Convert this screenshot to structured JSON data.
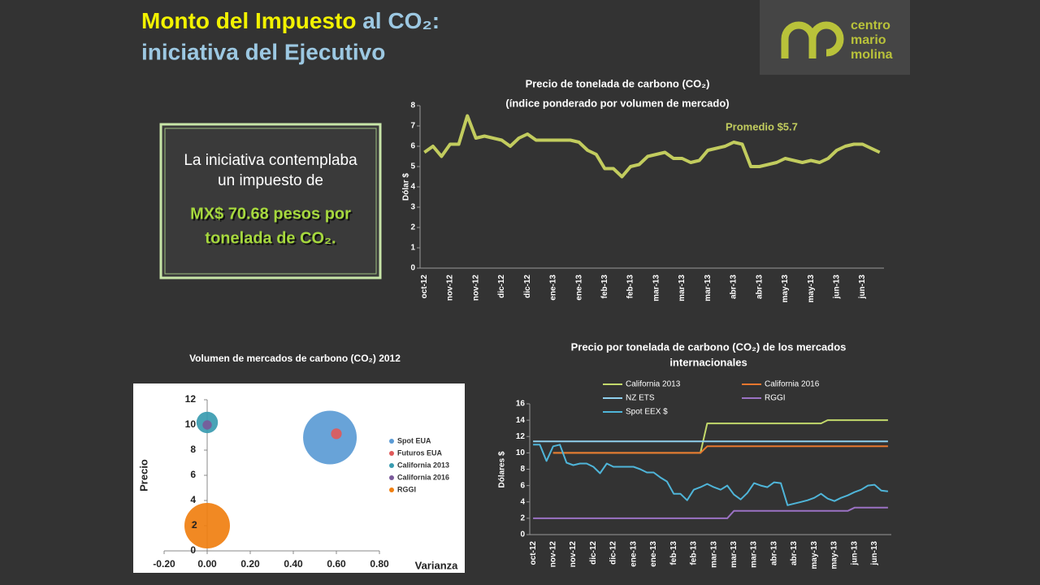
{
  "slide": {
    "title": [
      "Monto del Impuesto",
      "al CO₂:",
      "iniciativa del Ejecutivo"
    ],
    "box": {
      "lines": [
        "La iniciativa contemplaba",
        "un impuesto de"
      ],
      "highlight": [
        "MX$ 70.68 pesos por",
        "tonelada de CO₂."
      ]
    },
    "logo": [
      "centro",
      "mario",
      "molina"
    ]
  },
  "chart_data": [
    {
      "type": "line",
      "title": [
        "Precio de tonelada de carbono (CO₂)",
        "(índice ponderado por volumen de mercado)"
      ],
      "ylabel": "Dólar $",
      "annotation": "Promedio $5.7",
      "color": "#c2cc5e",
      "categories": [
        "oct-12",
        null,
        null,
        "nov-12",
        null,
        null,
        "nov-12",
        null,
        null,
        "dic-12",
        null,
        null,
        "dic-12",
        null,
        null,
        "ene-13",
        null,
        null,
        "ene-13",
        null,
        null,
        "feb-13",
        null,
        null,
        "feb-13",
        null,
        null,
        "mar-13",
        null,
        null,
        "mar-13",
        null,
        null,
        "mar-13",
        null,
        null,
        "abr-13",
        null,
        null,
        "abr-13",
        null,
        null,
        "may-13",
        null,
        null,
        "may-13",
        null,
        null,
        "jun-13",
        null,
        null,
        "jun-13",
        null,
        null
      ],
      "values": [
        5.7,
        6.0,
        5.5,
        6.1,
        6.1,
        7.5,
        6.4,
        6.5,
        6.4,
        6.3,
        6.0,
        6.4,
        6.6,
        6.3,
        6.3,
        6.3,
        6.3,
        6.3,
        6.2,
        5.8,
        5.6,
        4.9,
        4.9,
        4.5,
        5.0,
        5.1,
        5.5,
        5.6,
        5.7,
        5.4,
        5.4,
        5.2,
        5.3,
        5.8,
        5.9,
        6.0,
        6.2,
        6.1,
        5.0,
        5.0,
        5.1,
        5.2,
        5.4,
        5.3,
        5.2,
        5.3,
        5.2,
        5.4,
        5.8,
        6.0,
        6.1,
        6.1,
        5.9,
        5.7
      ],
      "ylim": [
        0,
        8
      ],
      "yticks": [
        0,
        1,
        2,
        3,
        4,
        5,
        6,
        7,
        8
      ]
    },
    {
      "type": "scatter",
      "title": "Volumen de mercados de carbono (CO₂) 2012",
      "xlabel": "Varianza",
      "ylabel": "Precio",
      "xlim": [
        -0.2,
        0.8
      ],
      "xticks": [
        {
          "value": -0.2,
          "label": "-0.20"
        },
        {
          "value": 0,
          "label": "0.00"
        },
        {
          "value": 0.2,
          "label": "0.20"
        },
        {
          "value": 0.4,
          "label": "0.40"
        },
        {
          "value": 0.6,
          "label": "0.60"
        },
        {
          "value": 0.8,
          "label": "0.80"
        }
      ],
      "ylim": [
        0,
        12
      ],
      "yticks": [
        0,
        2,
        4,
        6,
        8,
        10,
        12
      ],
      "series": [
        {
          "name": "Spot EUA",
          "color": "#5b9bd5",
          "x": [
            0.57
          ],
          "y": [
            9
          ],
          "size": [
            100
          ]
        },
        {
          "name": "Futuros EUA",
          "color": "#e05a5a",
          "x": [
            0.6
          ],
          "y": [
            9.3
          ],
          "size": [
            4
          ]
        },
        {
          "name": "California 2013",
          "color": "#3a9bb0",
          "x": [
            0
          ],
          "y": [
            10.2
          ],
          "size": [
            16
          ]
        },
        {
          "name": "California 2016",
          "color": "#7a5a9a",
          "x": [
            0
          ],
          "y": [
            10
          ],
          "size": [
            3
          ]
        },
        {
          "name": "RGGI",
          "color": "#f07f10",
          "x": [
            0
          ],
          "y": [
            2
          ],
          "size": [
            72
          ]
        }
      ]
    },
    {
      "type": "line",
      "title": [
        "Precio por tonelada de carbono (CO₂) de los mercados",
        "internacionales"
      ],
      "ylabel": "Dólares $",
      "categories": [
        "oct-12",
        null,
        null,
        "nov-12",
        null,
        null,
        "nov-12",
        null,
        null,
        "dic-12",
        null,
        null,
        "dic-12",
        null,
        null,
        "ene-13",
        null,
        null,
        "ene-13",
        null,
        null,
        "feb-13",
        null,
        null,
        "feb-13",
        null,
        null,
        "mar-13",
        null,
        null,
        "mar-13",
        null,
        null,
        "mar-13",
        null,
        null,
        "abr-13",
        null,
        null,
        "abr-13",
        null,
        null,
        "may-13",
        null,
        null,
        "may-13",
        null,
        null,
        "jun-13",
        null,
        null,
        "jun-13",
        null,
        null
      ],
      "ylim": [
        0,
        16
      ],
      "yticks": [
        0,
        2,
        4,
        6,
        8,
        10,
        12,
        14,
        16
      ],
      "series": [
        {
          "name": "California 2013",
          "color": "#c3d96b",
          "values": [
            null,
            null,
            null,
            10,
            10,
            10,
            10,
            10,
            10,
            10,
            10,
            10,
            10,
            10,
            10,
            10,
            10,
            10,
            10,
            10,
            10,
            10,
            10,
            10,
            10,
            10,
            13.6,
            13.6,
            13.6,
            13.6,
            13.6,
            13.6,
            13.6,
            13.6,
            13.6,
            13.6,
            13.6,
            13.6,
            13.6,
            13.6,
            13.6,
            13.6,
            13.6,
            13.6,
            14,
            14,
            14,
            14,
            14,
            14,
            14,
            14,
            14,
            14
          ]
        },
        {
          "name": "California 2016",
          "color": "#e8772e",
          "values": [
            null,
            null,
            null,
            10,
            10,
            10,
            10,
            10,
            10,
            10,
            10,
            10,
            10,
            10,
            10,
            10,
            10,
            10,
            10,
            10,
            10,
            10,
            10,
            10,
            10,
            10,
            10.8,
            10.8,
            10.8,
            10.8,
            10.8,
            10.8,
            10.8,
            10.8,
            10.8,
            10.8,
            10.8,
            10.8,
            10.8,
            10.8,
            10.8,
            10.8,
            10.8,
            10.8,
            10.8,
            10.8,
            10.8,
            10.8,
            10.8,
            10.8,
            10.8,
            10.8,
            10.8,
            10.8
          ]
        },
        {
          "name": "NZ ETS",
          "color": "#8fd0ee",
          "values": [
            11.4,
            11.4,
            11.4,
            11.4,
            11.4,
            11.4,
            11.4,
            11.4,
            11.4,
            11.4,
            11.4,
            11.4,
            11.4,
            11.4,
            11.4,
            11.4,
            11.4,
            11.4,
            11.4,
            11.4,
            11.4,
            11.4,
            11.4,
            11.4,
            11.4,
            11.4,
            11.4,
            11.4,
            11.4,
            11.4,
            11.4,
            11.4,
            11.4,
            11.4,
            11.4,
            11.4,
            11.4,
            11.4,
            11.4,
            11.4,
            11.4,
            11.4,
            11.4,
            11.4,
            11.4,
            11.4,
            11.4,
            11.4,
            11.4,
            11.4,
            11.4,
            11.4,
            11.4,
            11.4
          ]
        },
        {
          "name": "RGGI",
          "color": "#9b72c4",
          "values": [
            2,
            2,
            2,
            2,
            2,
            2,
            2,
            2,
            2,
            2,
            2,
            2,
            2,
            2,
            2,
            2,
            2,
            2,
            2,
            2,
            2,
            2,
            2,
            2,
            2,
            2,
            2,
            2,
            2,
            2,
            2.9,
            2.9,
            2.9,
            2.9,
            2.9,
            2.9,
            2.9,
            2.9,
            2.9,
            2.9,
            2.9,
            2.9,
            2.9,
            2.9,
            2.9,
            2.9,
            2.9,
            2.9,
            3.3,
            3.3,
            3.3,
            3.3,
            3.3,
            3.3
          ]
        },
        {
          "name": "Spot EEX $",
          "color": "#4fb5d9",
          "values": [
            11,
            11,
            9,
            10.8,
            11,
            8.8,
            8.5,
            8.7,
            8.7,
            8.3,
            7.5,
            8.7,
            8.3,
            8.3,
            8.3,
            8.3,
            8.0,
            7.6,
            7.6,
            7.0,
            6.5,
            5.0,
            5.0,
            4.2,
            5.5,
            5.8,
            6.2,
            5.8,
            5.5,
            6.0,
            4.9,
            4.3,
            5.1,
            6.3,
            6.0,
            5.8,
            6.4,
            6.3,
            3.6,
            3.8,
            4.0,
            4.2,
            4.5,
            5.0,
            4.4,
            4.1,
            4.5,
            4.8,
            5.2,
            5.5,
            6.0,
            6.1,
            5.4,
            5.3
          ]
        }
      ]
    }
  ]
}
